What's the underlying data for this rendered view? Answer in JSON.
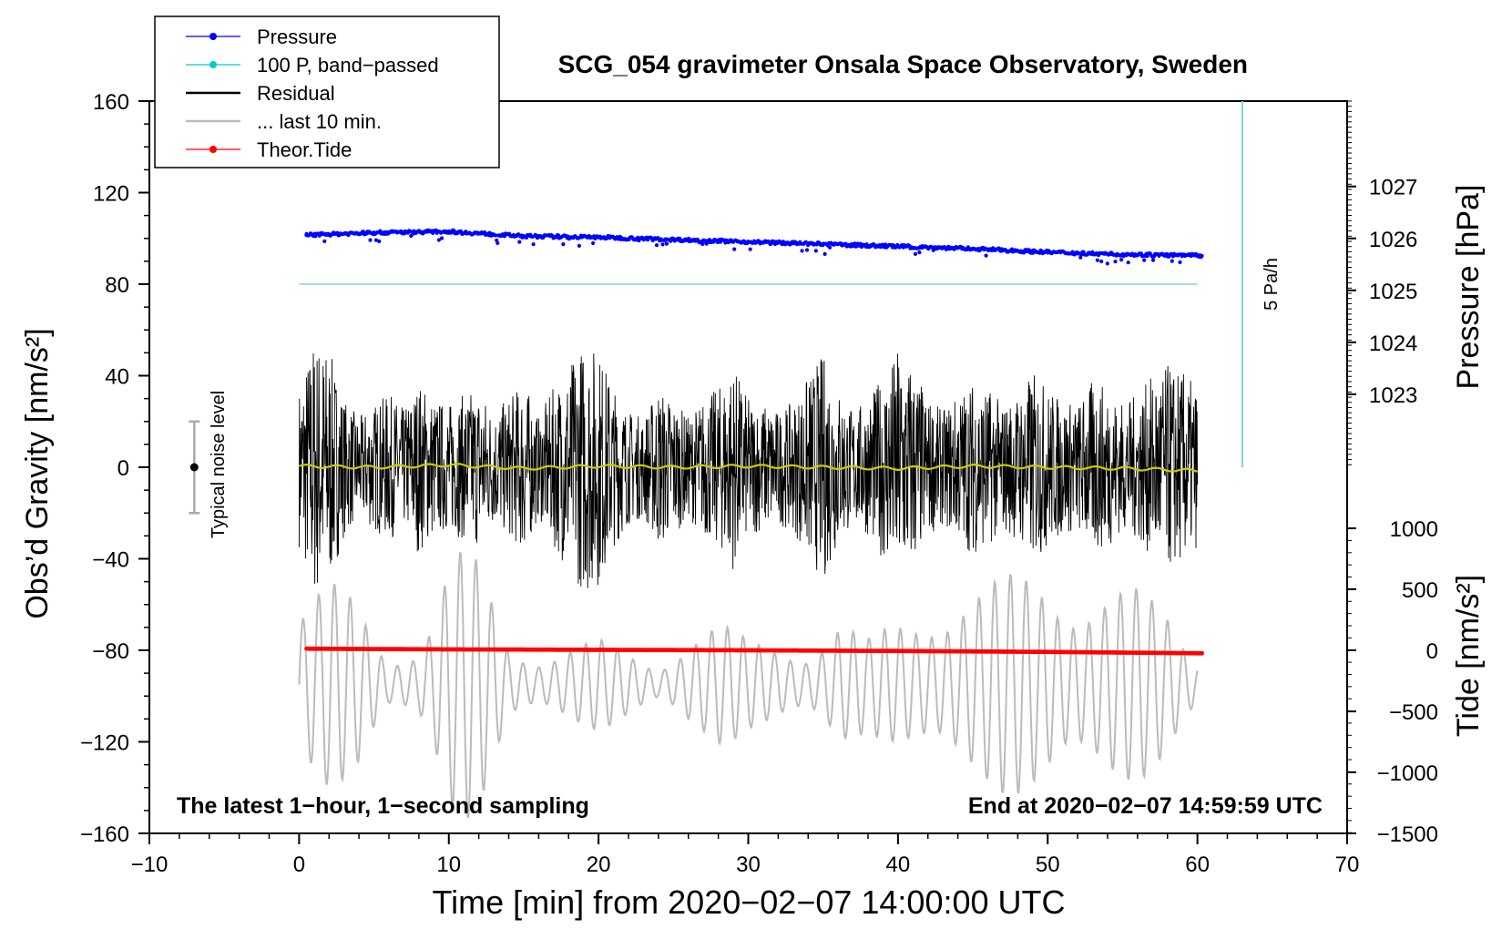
{
  "chart_data": {
    "type": "line",
    "title": "SCG_054 gravimeter Onsala Space Observatory, Sweden",
    "xlabel": "Time [min] from 2020−02−07 14:00:00 UTC",
    "xlim": [
      -10,
      70
    ],
    "x_ticks": [
      -10,
      0,
      10,
      20,
      30,
      40,
      50,
      60,
      70
    ],
    "x_tick_labels": [
      "−10",
      "0",
      "10",
      "20",
      "30",
      "40",
      "50",
      "60",
      "70"
    ],
    "left_axis": {
      "label": "Obs’d Gravity [nm/s²]",
      "ylim": [
        -160,
        160
      ],
      "ticks": [
        160,
        120,
        80,
        40,
        0,
        -40,
        -80,
        -120,
        -160
      ],
      "tick_labels": [
        "160",
        "120",
        "80",
        "40",
        "0",
        "−40",
        "−80",
        "−120",
        "−160"
      ]
    },
    "pressure_axis": {
      "label": "Pressure [hPa]",
      "ticks": [
        1027,
        1026,
        1025,
        1024,
        1023
      ],
      "tick_labels": [
        "1027",
        "1026",
        "1025",
        "1024",
        "1023"
      ],
      "gravity_at": [
        122.7,
        100.0,
        77.3,
        54.6,
        31.9
      ]
    },
    "tide_axis": {
      "label": "Tide [nm/s²]",
      "ticks": [
        1000,
        500,
        0,
        -500,
        -1000,
        -1500
      ],
      "tick_labels": [
        "1000",
        "500",
        "0",
        "−500",
        "−1000",
        "−1500"
      ],
      "gravity_at": [
        -26.7,
        -53.3,
        -80.0,
        -106.7,
        -133.3,
        -160.0
      ]
    },
    "legend": {
      "position": "top-left",
      "entries": [
        {
          "name": "Pressure",
          "color": "#0000ff",
          "marker": "dot"
        },
        {
          "name": "100 P, band−passed",
          "color": "#00cccc",
          "marker": "dot"
        },
        {
          "name": "Residual",
          "color": "#000000",
          "marker": "none"
        },
        {
          "name": "... last 10 min.",
          "color": "#bbbbbb",
          "marker": "none"
        },
        {
          "name": "Theor.Tide",
          "color": "#ff0000",
          "marker": "dot"
        }
      ]
    },
    "series": [
      {
        "name": "Pressure",
        "color": "#0000ff",
        "style": "dots",
        "x": [
          0.5,
          5,
          10,
          15,
          20,
          25,
          30,
          35,
          40,
          45,
          50,
          55,
          60
        ],
        "y": [
          101.5,
          102.5,
          103,
          101,
          100.5,
          99.5,
          98.5,
          97.5,
          96.5,
          95.5,
          94,
          93,
          92.5
        ]
      },
      {
        "name": "100 P, band−passed",
        "color": "#7fd6d6",
        "style": "line",
        "x": [
          0,
          60
        ],
        "y": [
          80,
          80
        ]
      },
      {
        "name": "Residual",
        "color": "#000000",
        "style": "dense",
        "envelope_x": [
          0,
          1,
          2,
          3,
          4,
          5,
          6,
          7,
          8,
          9,
          10,
          11,
          12,
          13,
          14,
          15,
          16,
          17,
          18,
          19,
          20,
          21,
          22,
          23,
          24,
          25,
          26,
          27,
          28,
          29,
          30,
          31,
          32,
          33,
          34,
          35,
          36,
          37,
          38,
          39,
          40,
          41,
          42,
          43,
          44,
          45,
          46,
          47,
          48,
          49,
          50,
          51,
          52,
          53,
          54,
          55,
          56,
          57,
          58,
          59,
          60
        ],
        "envelope_amp": [
          35,
          58,
          52,
          30,
          22,
          28,
          32,
          26,
          38,
          30,
          28,
          32,
          35,
          25,
          30,
          38,
          22,
          35,
          45,
          55,
          52,
          35,
          25,
          22,
          35,
          30,
          22,
          30,
          35,
          45,
          30,
          28,
          25,
          28,
          40,
          50,
          35,
          25,
          30,
          40,
          52,
          45,
          30,
          25,
          32,
          38,
          35,
          28,
          32,
          42,
          35,
          30,
          28,
          38,
          35,
          28,
          32,
          40,
          45,
          42,
          35
        ]
      },
      {
        "name": "Residual (smoothed)",
        "color": "#cccc00",
        "style": "line",
        "x": [
          0,
          5,
          10,
          15,
          20,
          25,
          30,
          35,
          40,
          45,
          50,
          55,
          60
        ],
        "y": [
          0.5,
          0,
          1,
          -0.5,
          0.5,
          0,
          0.5,
          0,
          -0.5,
          0.5,
          0,
          -0.5,
          -1.5
        ]
      },
      {
        "name": "... last 10 min.",
        "color": "#bbbbbb",
        "style": "line",
        "x_start": 0,
        "x_end": 60,
        "envelope_x": [
          0,
          2,
          4,
          6,
          8,
          9,
          10,
          11,
          12,
          13,
          14,
          16,
          18,
          20,
          22,
          24,
          26,
          28,
          30,
          32,
          34,
          36,
          38,
          40,
          42,
          44,
          46,
          48,
          50,
          52,
          54,
          56,
          58,
          60
        ],
        "envelope_amp": [
          35,
          45,
          40,
          15,
          20,
          35,
          55,
          60,
          55,
          40,
          20,
          15,
          18,
          20,
          15,
          10,
          25,
          28,
          20,
          20,
          18,
          30,
          20,
          30,
          40,
          45,
          45,
          50,
          55,
          48,
          45,
          42,
          35,
          15
        ],
        "center": -95
      },
      {
        "name": "Theor.Tide",
        "color": "#ff0000",
        "style": "dots",
        "x": [
          0.5,
          10,
          20,
          30,
          40,
          50,
          60
        ],
        "y": [
          -79.3,
          -79.6,
          -79.8,
          -80.0,
          -80.3,
          -80.7,
          -81.3
        ]
      }
    ],
    "noise_bar": {
      "label": "Typical noise level",
      "x": -7,
      "y": 0,
      "low": -20,
      "high": 20
    },
    "rate_marker": {
      "label": "5 Pa/h",
      "x": 63,
      "from": 0,
      "to": 160
    },
    "annotations": {
      "left_note": "The latest 1−hour, 1−second sampling",
      "right_note": "End at 2020−02−07 14:59:59 UTC"
    }
  }
}
